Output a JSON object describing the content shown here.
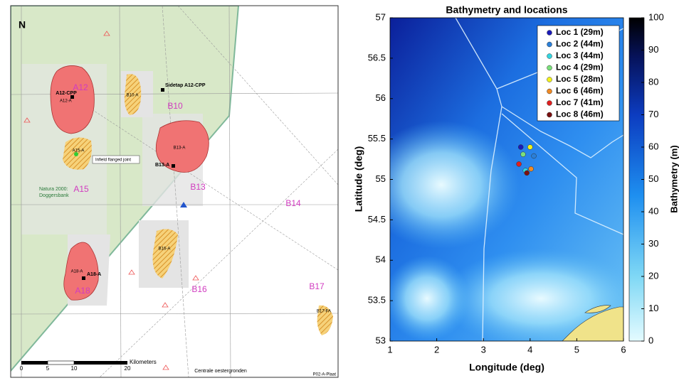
{
  "map": {
    "north": "N",
    "labels": {
      "a12": "A12",
      "a12_cpp": "A12-CPP",
      "a12_a": "A12-A",
      "b10": "B10",
      "b10_a": "B10-A",
      "sidetap": "Sidetap A12-CPP",
      "b13_a": "B13-A",
      "b13a_small": "B13-A",
      "b13": "B13",
      "a15": "A15",
      "a15_a": "A15-A",
      "b14": "B14",
      "infield": "Infield flanged joint",
      "natura": "Natura 2000:",
      "natura2": "Doggersbank",
      "a18": "A18",
      "a18_a": "A18-A",
      "a18_a_small": "A18-A",
      "b16": "B16",
      "b16_a": "B16-A",
      "b17": "B17",
      "b17_fa": "B17-FA",
      "centrale": "Centrale oestergronden",
      "code": "P02-A-Plaat"
    },
    "scale_bar": {
      "unit": "Kilometers",
      "ticks": [
        "0",
        "5",
        "10",
        "20"
      ]
    }
  },
  "chart_data": {
    "type": "scatter",
    "title": "Bathymetry and locations",
    "x_label": "Longitude (deg)",
    "y_label": "Latitude (deg)",
    "xlim": [
      1,
      6
    ],
    "xticks": [
      1,
      2,
      3,
      4,
      5,
      6
    ],
    "ylim": [
      53,
      57
    ],
    "yticks": [
      53,
      53.5,
      54,
      54.5,
      55,
      55.5,
      56,
      56.5,
      57
    ],
    "legend": "upper right",
    "colorbar": {
      "label": "Bathymetry (m)",
      "lim": [
        0,
        100
      ],
      "ticks": [
        0,
        10,
        20,
        30,
        40,
        50,
        60,
        70,
        80,
        90,
        100
      ]
    },
    "series": [
      {
        "name": "Loc 1 (29m)",
        "color": "#1a1ab8",
        "x": [
          3.8
        ],
        "values": [
          55.4
        ]
      },
      {
        "name": "Loc 2 (44m)",
        "color": "#2a7fd8",
        "x": [
          4.08
        ],
        "values": [
          55.29
        ]
      },
      {
        "name": "Loc 3 (44m)",
        "color": "#33d6e0",
        "x": [
          3.9
        ],
        "values": [
          55.11
        ]
      },
      {
        "name": "Loc 4 (29m)",
        "color": "#7be07b",
        "x": [
          3.85
        ],
        "values": [
          55.31
        ]
      },
      {
        "name": "Loc 5 (28m)",
        "color": "#f2f21a",
        "x": [
          4.0
        ],
        "values": [
          55.4
        ]
      },
      {
        "name": "Loc 6 (46m)",
        "color": "#f08a24",
        "x": [
          4.02
        ],
        "values": [
          55.13
        ]
      },
      {
        "name": "Loc 7 (41m)",
        "color": "#e01f1f",
        "x": [
          3.76
        ],
        "values": [
          55.19
        ]
      },
      {
        "name": "Loc 8 (46m)",
        "color": "#7a1010",
        "x": [
          3.93
        ],
        "values": [
          55.08
        ]
      }
    ]
  }
}
